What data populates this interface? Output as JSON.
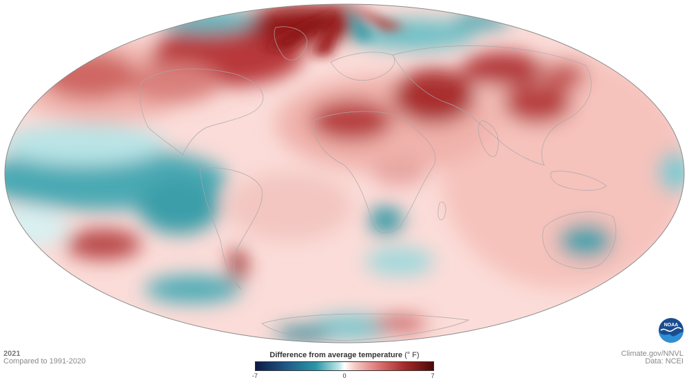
{
  "map": {
    "projection": "Mollweide",
    "colors": {
      "ocean_outline": "#8a8a8a",
      "country_lines": "#b5b5b5",
      "warm": "#c94b4b",
      "warm_dark": "#7a1010",
      "cool": "#2a9aa6",
      "cool_dark": "#0e6f80",
      "neutral": "#ffffff"
    }
  },
  "caption": {
    "year": "2021",
    "compared": "Compared to 1991-2020"
  },
  "legend": {
    "title": "Difference from average temperature",
    "unit": "(° F)",
    "min_label": "-7",
    "mid_label": "0",
    "max_label": "7"
  },
  "credits": {
    "site": "Climate.gov/NNVL",
    "data": "Data: NCEI"
  },
  "logo": {
    "text": "NOAA",
    "icon": "noaa-logo-icon"
  }
}
